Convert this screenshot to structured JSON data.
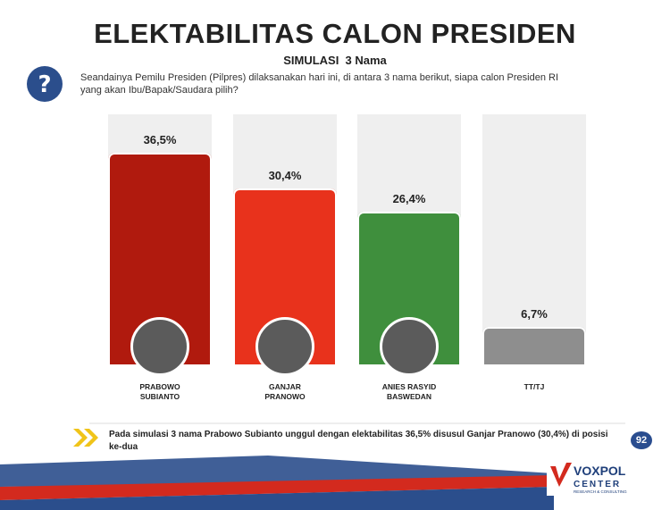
{
  "chart_data": {
    "type": "bar",
    "title": "ELEKTABILITAS CALON PRESIDEN",
    "subtitle": "SIMULASI  3 Nama",
    "question": "Seandainya Pemilu Presiden (Pilpres) dilaksanakan hari ini, di antara 3 nama berikut, siapa calon Presiden RI yang akan Ibu/Bapak/Saudara pilih?",
    "categories": [
      "PRABOWO SUBIANTO",
      "GANJAR PRANOWO",
      "ANIES RASYID BASWEDAN",
      "TT/TJ"
    ],
    "values": [
      36.5,
      30.4,
      26.4,
      6.7
    ],
    "value_labels": [
      "36,5%",
      "30,4%",
      "26,4%",
      "6,7%"
    ],
    "colors": [
      "#b01a0e",
      "#e8321c",
      "#3f8f3d",
      "#8e8e8e"
    ],
    "ylim": [
      0,
      43
    ]
  },
  "footer": {
    "note": "Pada simulasi 3 nama Prabowo Subianto unggul dengan elektabilitas 36,5% disusul Ganjar Pranowo (30,4%) di posisi ke-dua",
    "page": "92",
    "logo": {
      "name": "VOXPOL",
      "sub": "CENTER",
      "tagline": "RESEARCH & CONSULTING"
    }
  }
}
